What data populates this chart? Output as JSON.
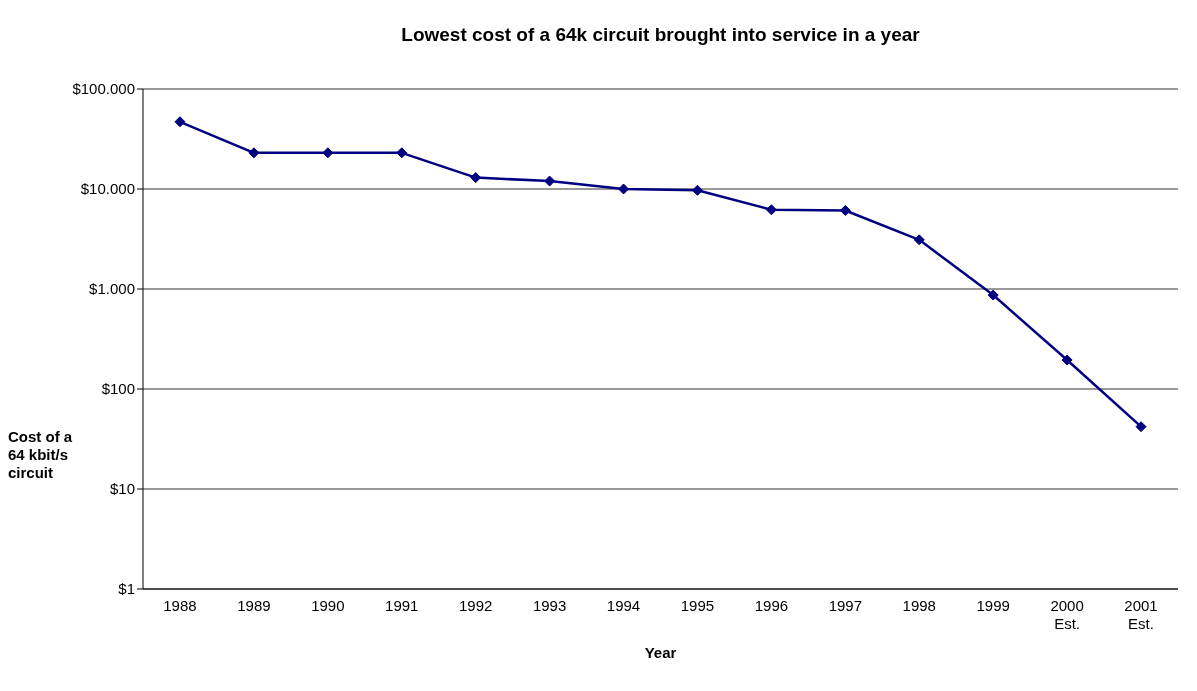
{
  "chart_data": {
    "type": "line",
    "title": "Lowest cost of a 64k circuit brought into service in a year",
    "xlabel": "Year",
    "ylabel": "Cost of a 64 kbit/s circuit",
    "categories": [
      "1988",
      "1989",
      "1990",
      "1991",
      "1992",
      "1993",
      "1994",
      "1995",
      "1996",
      "1997",
      "1998",
      "1999",
      "2000 Est.",
      "2001 Est."
    ],
    "series": [
      {
        "color": "#000080",
        "values": [
          47000,
          23000,
          23000,
          23000,
          13000,
          12000,
          10000,
          9700,
          6200,
          6100,
          3100,
          870,
          195,
          42
        ]
      }
    ],
    "log": "y",
    "ylim": [
      1,
      100000
    ],
    "yticks": [
      {
        "value": 1,
        "label": "$1"
      },
      {
        "value": 10,
        "label": "$10"
      },
      {
        "value": 100,
        "label": "$100"
      },
      {
        "value": 1000,
        "label": "$1.000"
      },
      {
        "value": 10000,
        "label": "$10.000"
      },
      {
        "value": 100000,
        "label": "$100.000"
      }
    ],
    "grid": "y",
    "legend": false,
    "marker": "diamond",
    "line_style": "solid"
  }
}
